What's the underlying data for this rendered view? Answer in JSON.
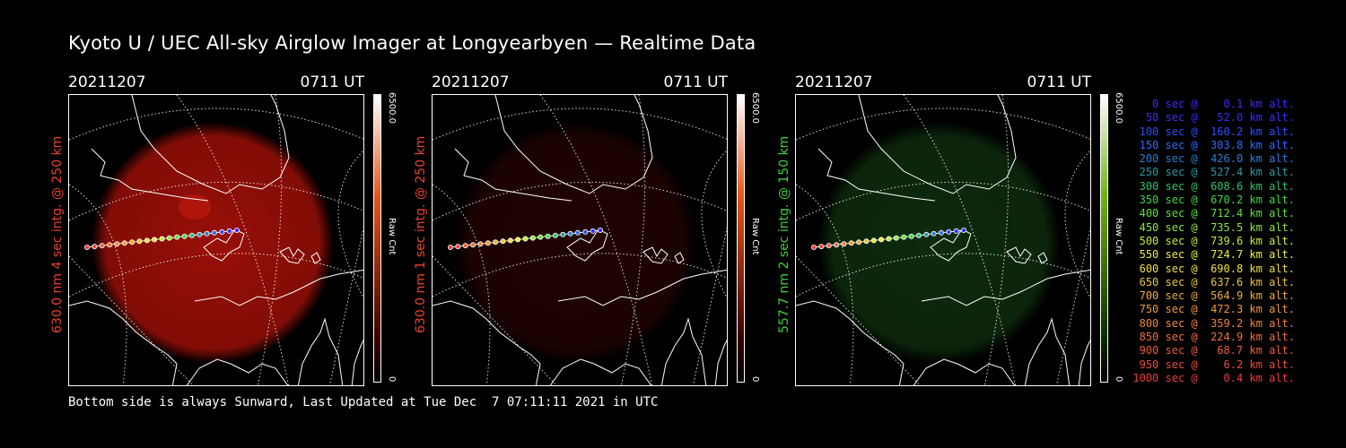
{
  "title": "Kyoto U / UEC All-sky Airglow Imager at Longyearbyen — Realtime Data",
  "footer": "Bottom side is always Sunward, Last Updated at Tue Dec  7 07:11:11 2021 in UTC",
  "panels": [
    {
      "date": "20211207",
      "time": "0711 UT",
      "ylabel": "630.0 nm 4 sec intg. @ 250 km",
      "label_color": "#e8412a",
      "cb_max": "6500.0",
      "cb_min": "0",
      "cb_unit": "Raw Cnt",
      "glow_color": "#a01008",
      "glow_level": 0.95
    },
    {
      "date": "20211207",
      "time": "0711 UT",
      "ylabel": "630.0 nm 1 sec intg. @ 250 km",
      "label_color": "#e8412a",
      "cb_max": "6500.0",
      "cb_min": "0",
      "cb_unit": "Raw Cnt",
      "glow_color": "#3a0604",
      "glow_level": 0.55
    },
    {
      "date": "20211207",
      "time": "0711 UT",
      "ylabel": "557.7 nm 2 sec intg. @ 150 km",
      "label_color": "#39d339",
      "cb_max": "6500.0",
      "cb_min": "0",
      "cb_unit": "Raw Cnt",
      "glow_color": "#133d13",
      "glow_level": 0.7
    }
  ],
  "legend": [
    {
      "text": "   0 sec @    0.1 km alt.",
      "color": "#3a2bff"
    },
    {
      "text": "  50 sec @   52.0 km alt.",
      "color": "#3a2bff"
    },
    {
      "text": " 100 sec @  160.2 km alt.",
      "color": "#2d4dff"
    },
    {
      "text": " 150 sec @  303.8 km alt.",
      "color": "#2d6bff"
    },
    {
      "text": " 200 sec @  426.0 km alt.",
      "color": "#2a7fd8"
    },
    {
      "text": " 250 sec @  527.4 km alt.",
      "color": "#2a9aa6"
    },
    {
      "text": " 300 sec @  608.6 km alt.",
      "color": "#2ac46a"
    },
    {
      "text": " 350 sec @  670.2 km alt.",
      "color": "#3fd83f"
    },
    {
      "text": " 400 sec @  712.4 km alt.",
      "color": "#5ee03a"
    },
    {
      "text": " 450 sec @  735.5 km alt.",
      "color": "#8ee83a"
    },
    {
      "text": " 500 sec @  739.6 km alt.",
      "color": "#c3ee3a"
    },
    {
      "text": " 550 sec @  724.7 km alt.",
      "color": "#eef03a"
    },
    {
      "text": " 600 sec @  690.8 km alt.",
      "color": "#f0e03a"
    },
    {
      "text": " 650 sec @  637.6 km alt.",
      "color": "#f0c43a"
    },
    {
      "text": " 700 sec @  564.9 km alt.",
      "color": "#f0aa3a"
    },
    {
      "text": " 750 sec @  472.3 km alt.",
      "color": "#f09a3a"
    },
    {
      "text": " 800 sec @  359.2 km alt.",
      "color": "#f0853a"
    },
    {
      "text": " 850 sec @  224.9 km alt.",
      "color": "#f0703a"
    },
    {
      "text": " 900 sec @   68.7 km alt.",
      "color": "#ef5c3a"
    },
    {
      "text": " 950 sec @    6.2 km alt.",
      "color": "#ef4a3a"
    },
    {
      "text": "1000 sec @    0.4 km alt.",
      "color": "#ef3a3a"
    }
  ]
}
